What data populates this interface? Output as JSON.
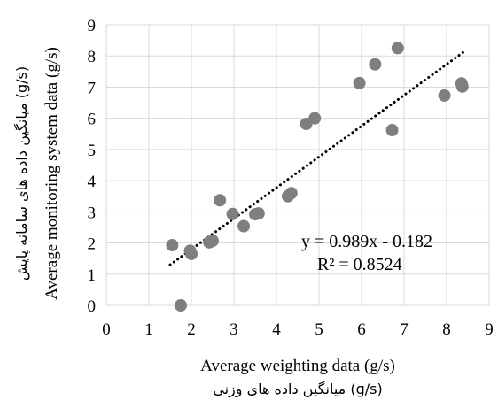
{
  "chart_data": {
    "type": "scatter",
    "xlabel": "Average weighting data (g/s)",
    "xlabel_fa": "(g/s) میانگین داده های وزنی",
    "ylabel": "Average monitoring system data (g/s)",
    "ylabel_fa": "(g/s) میانگین داده های سامانه پایش",
    "xlim": [
      0,
      9
    ],
    "ylim": [
      0,
      9
    ],
    "x_ticks": [
      0,
      1,
      2,
      3,
      4,
      5,
      6,
      7,
      8,
      9
    ],
    "y_ticks": [
      0,
      1,
      2,
      3,
      4,
      5,
      6,
      7,
      8,
      9
    ],
    "grid": true,
    "marker_color": "#7f7f7f",
    "trendline": {
      "slope": 0.989,
      "intercept": -0.182,
      "x_range": [
        1.5,
        8.4
      ],
      "equation": "y = 0.989x - 0.182",
      "r_squared": "R² = 0.8524"
    },
    "points": [
      {
        "x": 1.55,
        "y": 1.93
      },
      {
        "x": 1.75,
        "y": 0.0
      },
      {
        "x": 1.97,
        "y": 1.75
      },
      {
        "x": 2.0,
        "y": 1.65
      },
      {
        "x": 2.42,
        "y": 2.02
      },
      {
        "x": 2.5,
        "y": 2.07
      },
      {
        "x": 2.67,
        "y": 3.37
      },
      {
        "x": 2.97,
        "y": 2.93
      },
      {
        "x": 3.23,
        "y": 2.54
      },
      {
        "x": 3.5,
        "y": 2.92
      },
      {
        "x": 3.58,
        "y": 2.95
      },
      {
        "x": 4.27,
        "y": 3.5
      },
      {
        "x": 4.35,
        "y": 3.6
      },
      {
        "x": 4.7,
        "y": 5.82
      },
      {
        "x": 4.9,
        "y": 6.0
      },
      {
        "x": 5.95,
        "y": 7.13
      },
      {
        "x": 6.32,
        "y": 7.73
      },
      {
        "x": 6.72,
        "y": 5.62
      },
      {
        "x": 6.85,
        "y": 8.25
      },
      {
        "x": 7.95,
        "y": 6.73
      },
      {
        "x": 8.35,
        "y": 7.12
      },
      {
        "x": 8.37,
        "y": 7.02
      }
    ]
  }
}
